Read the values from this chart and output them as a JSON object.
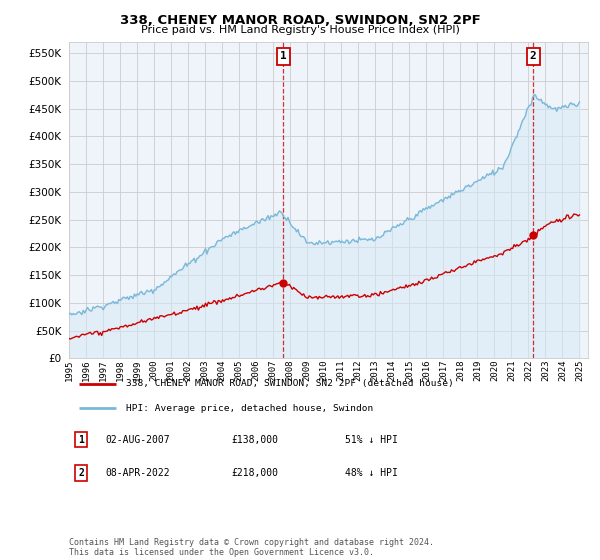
{
  "title": "338, CHENEY MANOR ROAD, SWINDON, SN2 2PF",
  "subtitle": "Price paid vs. HM Land Registry's House Price Index (HPI)",
  "yticks": [
    0,
    50000,
    100000,
    150000,
    200000,
    250000,
    300000,
    350000,
    400000,
    450000,
    500000,
    550000
  ],
  "x_start_year": 1995,
  "x_end_year": 2025,
  "hpi_color": "#7ab8d9",
  "hpi_fill_color": "#d6eaf5",
  "price_color": "#cc0000",
  "marker1_year": 2007.6,
  "marker1_price": 138000,
  "marker1_label": "1",
  "marker2_year": 2022.27,
  "marker2_price": 218000,
  "marker2_label": "2",
  "legend_line1": "338, CHENEY MANOR ROAD, SWINDON, SN2 2PF (detached house)",
  "legend_line2": "HPI: Average price, detached house, Swindon",
  "annotation1_date": "02-AUG-2007",
  "annotation1_price": "£138,000",
  "annotation1_pct": "51% ↓ HPI",
  "annotation2_date": "08-APR-2022",
  "annotation2_price": "£218,000",
  "annotation2_pct": "48% ↓ HPI",
  "footer": "Contains HM Land Registry data © Crown copyright and database right 2024.\nThis data is licensed under the Open Government Licence v3.0.",
  "bg_color": "#ffffff",
  "grid_color": "#cccccc",
  "chart_bg": "#eef4fa"
}
